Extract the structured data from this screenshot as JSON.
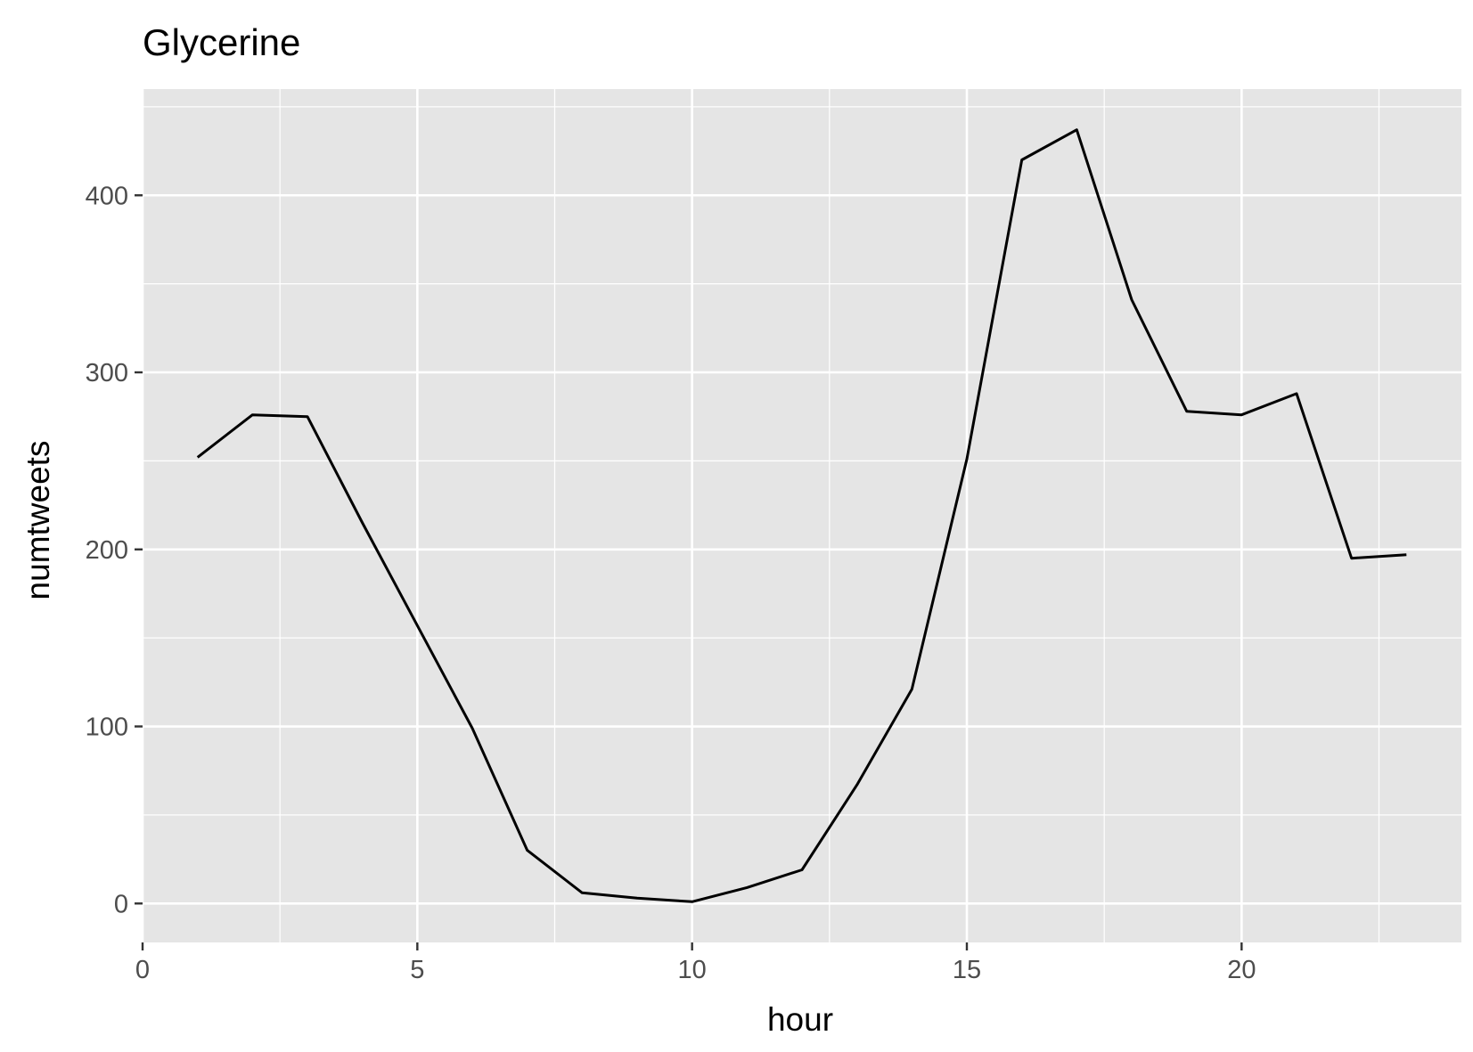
{
  "chart_data": {
    "type": "line",
    "title": "Glycerine",
    "xlabel": "hour",
    "ylabel": "numtweets",
    "xlim": [
      0,
      24
    ],
    "ylim": [
      -22,
      460
    ],
    "x_ticks": [
      0,
      5,
      10,
      15,
      20
    ],
    "y_ticks": [
      0,
      100,
      200,
      300,
      400
    ],
    "x_tick_labels": [
      "0",
      "5",
      "10",
      "15",
      "20"
    ],
    "y_tick_labels": [
      "0",
      "100",
      "200",
      "300",
      "400"
    ],
    "x_minor": [
      2.5,
      7.5,
      12.5,
      17.5,
      22.5
    ],
    "y_minor": [
      50,
      150,
      250,
      350,
      450
    ],
    "grid": true,
    "panel_background": "#e5e5e5",
    "grid_color": "#ffffff",
    "line_color": "#000000",
    "series": [
      {
        "x": [
          1,
          2,
          3,
          4,
          5,
          6,
          7,
          8,
          9,
          10,
          11,
          12,
          13,
          14,
          15,
          16,
          17,
          18,
          19,
          20,
          21,
          22,
          23
        ],
        "values": [
          252,
          276,
          275,
          215,
          157,
          99,
          30,
          6,
          3,
          1,
          9,
          19,
          67,
          121,
          251,
          420,
          437,
          341,
          278,
          276,
          288,
          195,
          197
        ]
      }
    ]
  }
}
